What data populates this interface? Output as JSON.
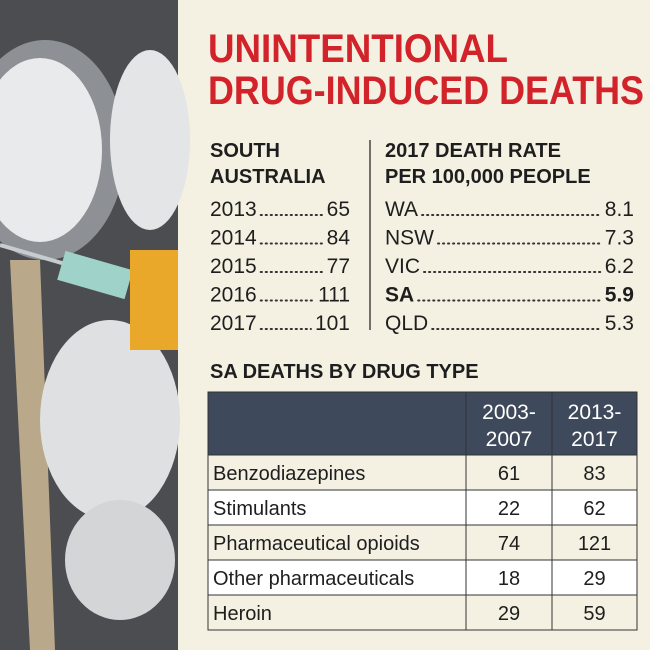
{
  "title": [
    "UNINTENTIONAL",
    "DRUG-INDUCED DEATHS"
  ],
  "south_australia": {
    "heading": [
      "SOUTH",
      "AUSTRALIA"
    ],
    "rows": [
      {
        "year": "2013",
        "deaths": 65
      },
      {
        "year": "2014",
        "deaths": 84
      },
      {
        "year": "2015",
        "deaths": 77
      },
      {
        "year": "2016",
        "deaths": 111
      },
      {
        "year": "2017",
        "deaths": 101
      }
    ]
  },
  "death_rate": {
    "heading": [
      "2017 DEATH RATE",
      "PER 100,000 PEOPLE"
    ],
    "rows": [
      {
        "state": "WA",
        "rate": 8.1
      },
      {
        "state": "NSW",
        "rate": 7.3
      },
      {
        "state": "VIC",
        "rate": 6.2
      },
      {
        "state": "SA",
        "rate": 5.9
      },
      {
        "state": "QLD",
        "rate": 5.3
      }
    ]
  },
  "drug_type": {
    "heading": "SA DEATHS BY DRUG TYPE",
    "columns": [
      [
        "2003-",
        "2007"
      ],
      [
        "2013-",
        "2017"
      ]
    ],
    "rows": [
      [
        "Benzodiazepines",
        61,
        83
      ],
      [
        "Stimulants",
        22,
        62
      ],
      [
        "Pharmaceutical opioids",
        74,
        121
      ],
      [
        "Other pharmaceuticals",
        18,
        29
      ],
      [
        "Heroin",
        29,
        59
      ]
    ]
  }
}
